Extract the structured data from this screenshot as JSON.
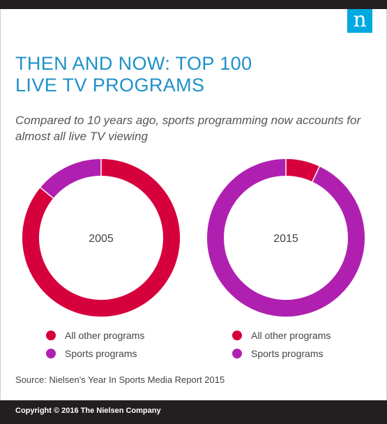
{
  "title_line1": "THEN AND NOW: TOP 100",
  "title_line2": "LIVE TV PROGRAMS",
  "subtitle": "Compared to 10 years ago, sports programming now accounts for almost all live TV viewing",
  "logo_letter": "n",
  "source": "Source: Nielsen's Year In Sports Media Report 2015",
  "copyright": "Copyright © 2016 The Nielsen Company",
  "colors": {
    "other": "#d6003c",
    "sports": "#b020b0",
    "title": "#1e90c8",
    "logo": "#00a9e0"
  },
  "chart_data": [
    {
      "type": "pie",
      "title": "2005",
      "categories": [
        "All other programs",
        "Sports programs"
      ],
      "values": [
        86,
        14
      ]
    },
    {
      "type": "pie",
      "title": "2015",
      "categories": [
        "All other programs",
        "Sports programs"
      ],
      "values": [
        7,
        93
      ]
    }
  ]
}
